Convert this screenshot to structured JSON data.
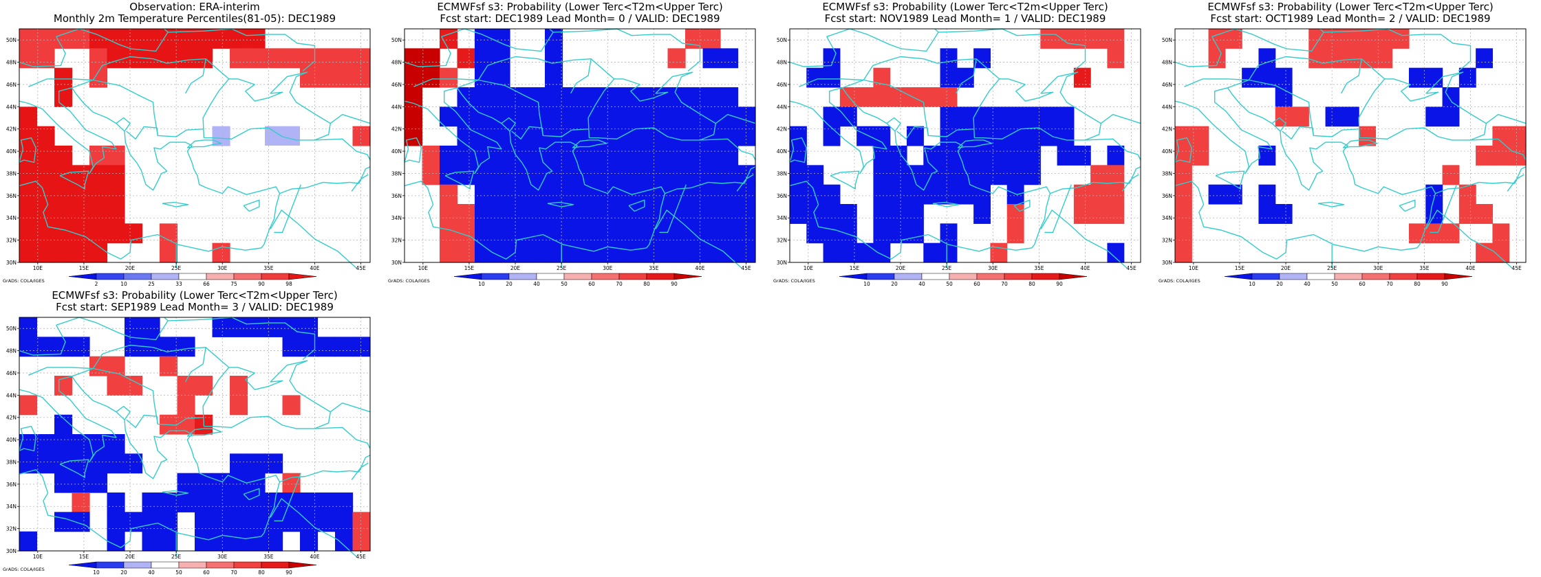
{
  "colors": {
    "coast": "#33cccc",
    "grid": "#b4b4b4",
    "frame": "#000000"
  },
  "map": {
    "lon_ticks": [
      "10E",
      "15E",
      "20E",
      "25E",
      "30E",
      "35E",
      "40E",
      "45E"
    ],
    "lat_ticks": [
      "30N",
      "32N",
      "34N",
      "36N",
      "38N",
      "40N",
      "42N",
      "44N",
      "46N",
      "48N",
      "50N"
    ],
    "lon_range": [
      8,
      46
    ],
    "lat_range": [
      30,
      51
    ],
    "credit": "GrADS: COLA/IGES"
  },
  "obs_scale": {
    "labels": [
      "2",
      "10",
      "25",
      "33",
      "66",
      "75",
      "90",
      "98"
    ],
    "colors": [
      "#0a14e6",
      "#3346f0",
      "#6a78f2",
      "#b0b4f6",
      "#ffffff",
      "#f7b0b0",
      "#f57070",
      "#f03c3c",
      "#e61414"
    ]
  },
  "prob_scale": {
    "labels": [
      "10",
      "20",
      "40",
      "50",
      "60",
      "70",
      "80",
      "90"
    ],
    "colors": [
      "#0a14e6",
      "#2a3cf0",
      "#b0b4f6",
      "#ffffff",
      "#f7b0b0",
      "#f57070",
      "#f04040",
      "#e61a1a",
      "#c80000"
    ]
  },
  "panels": [
    {
      "id": "obs",
      "title1": "Observation: ERA-interim",
      "title2": "Monthly 2m Temperature Percentiles(81-05): DEC1989",
      "scale": "obs",
      "rows": [
        "77779999999999......",
        "77..7999999.77777777",
        "..8.7...........7777",
        "..8.................",
        "8........44.......4.",
        "99.......443..334..7",
        "999.77.......444....",
        "999988.....4444.....",
        "999988..............",
        "999998..............",
        "9999988.7...........",
        "99999...7..7.......4"
      ]
    },
    {
      "id": "lead0",
      "title1": "ECMWFsf s3: Probability (Lower Terc<T2m<Upper Terc)",
      "title2": "Fcst start: DEC1989  Lead Month= 0 / VALID: DEC1989",
      "scale": "prob",
      "rows": [
        "..7.00..0.......66..",
        "99.700..0......6.00.",
        "996.00..0...........",
        "9..0000000000000000.",
        "9.000000000000000000",
        "9..00000000000000000",
        ".600000000000000000.",
        ".6000000000000000000",
        "..6.0000000000000000",
        "..660000000000000000",
        "..660000000000000000",
        "..660000000000000000"
      ]
    },
    {
      "id": "lead1",
      "title1": "ECMWFsf s3: Probability (Lower Terc<T2m<Upper Terc)",
      "title2": "Fcst start: NOV1989  Lead Month= 1 / VALID: DEC1989",
      "scale": "prob",
      "rows": [
        "...............66666",
        "..0......0.0.......6",
        ".00..6...00......7..",
        "...6666666...........",
        "..00.....00000000....",
        "0.0.00.0.00000000...",
        "0....00.0000000.00.0",
        "00...0000000000...66",
        "000..0000000.0...666",
        "0000.000...0.6...666",
        ".000.000.0...6......",
        "..0000..00..6......0"
      ]
    },
    {
      "id": "lead2",
      "title1": "ECMWFsf s3: Probability (Lower Terc<T2m<Upper Terc)",
      "title2": "Fcst start: OCT1989  Lead Month= 2 / VALID: DEC1989",
      "scale": "prob",
      "rows": [
        "..66....666666.....",
        "..6..0..66666.....0",
        "....000.......00.0.",
        "......0.........0..",
        "......66.00....00...",
        "66.........6.......66",
        "66...0............666",
        "6...............6....",
        "6.00.0.........0.6...",
        "6....00........0.66..",
        "6.............666..6.",
        "6.................66."
      ]
    },
    {
      "id": "lead3",
      "title1": "ECMWFsf s3: Probability (Lower Terc<T2m<Upper Terc)",
      "title2": "Fcst start: SEP1989  Lead Month= 3 / VALID: DEC1989",
      "scale": "prob",
      "rows": [
        "0.....00...000000...",
        "0000..0000.....00000",
        "....66..6...........",
        "..6..66..66.6.......",
        "6........6..6..6....",
        "..0.....667.........",
        "000000..............",
        "0000000.....000.....",
        "..000....00000.6....",
        "...6.0.000000000000.",
        "..00.0000.0000000006",
        "0....0.00.00000.0.06"
      ]
    }
  ]
}
